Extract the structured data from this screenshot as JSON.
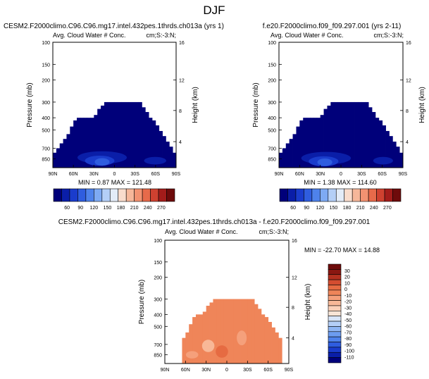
{
  "figure_title": "DJF",
  "colors": {
    "panel_scale": [
      "#00007a",
      "#0a1ea8",
      "#1a3ccc",
      "#2f5ddf",
      "#4e82eb",
      "#7eaaf3",
      "#b4cff7",
      "#e3ecf8",
      "#f9dccc",
      "#f6b79a",
      "#f29271",
      "#e76a4a",
      "#cf4130",
      "#a31c1a",
      "#6e0b0b"
    ],
    "diff_scale": [
      "#00007a",
      "#0a1ea8",
      "#1a3ccc",
      "#2f5ddf",
      "#4e82eb",
      "#6c9cf0",
      "#8fb6f4",
      "#b4cff7",
      "#d8e5f8",
      "#f7e4d6",
      "#fbd0b8",
      "#f8b897",
      "#f5a07b",
      "#ef8559",
      "#e66b42",
      "#d44d30",
      "#b3301f",
      "#8a1711",
      "#6e0b0b"
    ]
  },
  "panels": [
    {
      "title_left": "CESM2.F2000climo.C96.C96.mg17.intel.432pes.1thrds.ch013a (yrs 1)",
      "title_center": "",
      "subtitle_left": "Avg. Cloud Water # Conc.",
      "subtitle_right": "cm;S:-3:N;",
      "min_max": "MIN =   0.87   MAX = 121.48",
      "colorbar_labels": [
        "60",
        "90",
        "120",
        "150",
        "180",
        "210",
        "240",
        "270"
      ]
    },
    {
      "title_left": "",
      "title_center": "f.e20.F2000climo.f09_f09.297.001 (yrs 2-11)",
      "subtitle_left": "Avg. Cloud Water # Conc.",
      "subtitle_right": "cm;S:-3:N;",
      "min_max": "MIN =   1.38   MAX = 114.60",
      "colorbar_labels": [
        "60",
        "90",
        "120",
        "150",
        "180",
        "210",
        "240",
        "270"
      ]
    },
    {
      "title_left": "",
      "title_center": "CESM2.F2000climo.C96.C96.mg17.intel.432pes.1thrds.ch013a - f.e20.F2000climo.f09_f09.297.001",
      "subtitle_left": "Avg. Cloud Water # Conc.",
      "subtitle_right": "cm;S:-3:N;",
      "min_max": "MIN = -22.70   MAX =  14.88",
      "colorbar_labels": [
        "30",
        "20",
        "10",
        "0",
        "-10",
        "-20",
        "-30",
        "-40",
        "-50",
        "-60",
        "-70",
        "-80",
        "-90",
        "-100",
        "-110"
      ]
    }
  ],
  "axes": {
    "ylabel": "Pressure (mb)",
    "ylabel_right": "Height (km)",
    "x_ticks": [
      "90N",
      "60N",
      "30N",
      "0",
      "30S",
      "60S",
      "90S"
    ],
    "p_ticks": [
      "100",
      "150",
      "200",
      "300",
      "400",
      "500",
      "700",
      "850"
    ],
    "h_ticks": [
      "16",
      "12",
      "8",
      "4"
    ]
  },
  "chart_data": [
    {
      "type": "heatmap",
      "title": "CESM2.F2000climo.C96.C96.mg17.intel.432pes.1thrds.ch013a (yrs 1)",
      "variable": "Avg. Cloud Water # Conc.",
      "units": "cm;S:-3:N;",
      "x": [
        "90N",
        "60N",
        "30N",
        "0",
        "30S",
        "60S",
        "90S"
      ],
      "y_pressure_mb": [
        100,
        150,
        200,
        300,
        400,
        500,
        700,
        850
      ],
      "min": 0.87,
      "max": 121.48,
      "colorbar_levels": [
        60,
        90,
        120,
        150,
        180,
        210,
        240,
        270
      ]
    },
    {
      "type": "heatmap",
      "title": "f.e20.F2000climo.f09_f09.297.001 (yrs 2-11)",
      "variable": "Avg. Cloud Water # Conc.",
      "units": "cm;S:-3:N;",
      "x": [
        "90N",
        "60N",
        "30N",
        "0",
        "30S",
        "60S",
        "90S"
      ],
      "y_pressure_mb": [
        100,
        150,
        200,
        300,
        400,
        500,
        700,
        850
      ],
      "min": 1.38,
      "max": 114.6,
      "colorbar_levels": [
        60,
        90,
        120,
        150,
        180,
        210,
        240,
        270
      ]
    },
    {
      "type": "heatmap",
      "title": "CESM2.F2000climo.C96.C96.mg17.intel.432pes.1thrds.ch013a - f.e20.F2000climo.f09_f09.297.001",
      "variable": "Avg. Cloud Water # Conc.",
      "units": "cm;S:-3:N;",
      "x": [
        "90N",
        "60N",
        "30N",
        "0",
        "30S",
        "60S",
        "90S"
      ],
      "y_pressure_mb": [
        100,
        150,
        200,
        300,
        400,
        500,
        700,
        850
      ],
      "min": -22.7,
      "max": 14.88,
      "colorbar_levels": [
        30,
        20,
        10,
        0,
        -10,
        -20,
        -30,
        -40,
        -50,
        -60,
        -70,
        -80,
        -90,
        -100,
        -110
      ]
    }
  ]
}
